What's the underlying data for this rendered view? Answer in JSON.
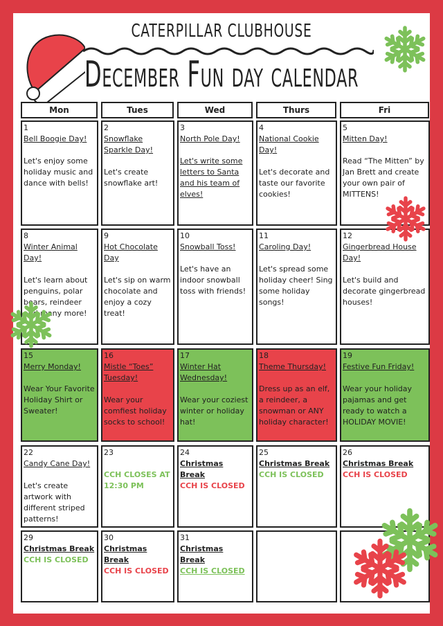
{
  "header": {
    "subtitle": "CATERPILLAR CLUBHOUSE",
    "title": "December Fun day calendar"
  },
  "colors": {
    "frame": "#dc3a44",
    "red": "#e8434a",
    "green": "#7dc15a"
  },
  "weekdays": [
    "Mon",
    "Tues",
    "Wed",
    "Thurs",
    "Fri"
  ],
  "weeks": [
    [
      {
        "day": "1",
        "title": "Bell Boogie Day!",
        "body": "Let's enjoy some holiday music and dance with bells!"
      },
      {
        "day": "2",
        "title": "Snowflake Sparkle Day!",
        "body": "Let's create snowflake art!"
      },
      {
        "day": "3",
        "title": "North Pole Day!",
        "body": "Let's write some letters to Santa and his team of elves!",
        "body_underline": true
      },
      {
        "day": "4",
        "title": "National Cookie Day!",
        "body": "Let's decorate and taste our favorite cookies!"
      },
      {
        "day": "5",
        "title": "Mitten Day!",
        "body": "Read “The Mitten” by Jan Brett and create your own pair of MITTENS!"
      }
    ],
    [
      {
        "day": "8",
        "title": "Winter Animal Day!",
        "body": "Let's learn about penguins, polar bears, reindeer and many more!"
      },
      {
        "day": "9",
        "title": "Hot Chocolate Day",
        "body": "Let's sip on warm chocolate and enjoy a cozy treat!"
      },
      {
        "day": "10",
        "title": "Snowball Toss!",
        "body": "Let's have an indoor snowball toss with friends!"
      },
      {
        "day": "11",
        "title": "Caroling Day!",
        "body": "Let's spread some holiday cheer! Sing some holiday songs!"
      },
      {
        "day": "12",
        "title": "Gingerbread House Day!",
        "body": "Let's build and decorate gingerbread houses!"
      }
    ],
    [
      {
        "day": "15",
        "title": "Merry Monday!",
        "body": "Wear Your Favorite Holiday Shirt or Sweater!",
        "bg": "green"
      },
      {
        "day": "16",
        "title": "Mistle “Toes” Tuesday!",
        "body": "Wear your comfiest holiday socks to school!",
        "bg": "red"
      },
      {
        "day": "17",
        "title": "Winter Hat Wednesday!",
        "body": "Wear your coziest winter or holiday hat!",
        "bg": "green"
      },
      {
        "day": "18",
        "title": "Theme Thursday!",
        "body": "Dress up as an elf, a reindeer, a snowman or ANY holiday character!",
        "bg": "red"
      },
      {
        "day": "19",
        "title": "Festive Fun Friday!",
        "body": "Wear your holiday pajamas and get ready to watch a HOLIDAY MOVIE!",
        "bg": "green"
      }
    ],
    [
      {
        "day": "22",
        "title": "Candy Cane Day!",
        "body": "Let's create artwork with different striped patterns!"
      },
      {
        "day": "23",
        "note": "CCH CLOSES AT 12:30 PM",
        "note_color": "green",
        "note_gap": true
      },
      {
        "day": "24",
        "break": "Christmas Break",
        "note": "CCH IS CLOSED",
        "note_color": "red"
      },
      {
        "day": "25",
        "break": "Christmas Break",
        "note": "CCH IS CLOSED",
        "note_color": "green"
      },
      {
        "day": "26",
        "break": "Christmas Break",
        "note": "CCH IS CLOSED",
        "note_color": "red"
      }
    ],
    [
      {
        "day": "29",
        "break": "Christmas Break",
        "note": "CCH IS CLOSED",
        "note_color": "green"
      },
      {
        "day": "30",
        "break": "Christmas Break",
        "note": "CCH IS CLOSED",
        "note_color": "red"
      },
      {
        "day": "31",
        "break": "Christmas Break",
        "note": "CCH IS CLOSED",
        "note_color": "green",
        "note_underline": true
      },
      {},
      {}
    ]
  ]
}
